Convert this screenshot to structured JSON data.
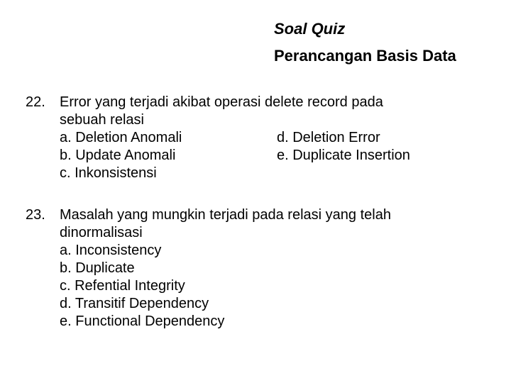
{
  "header": {
    "title": "Soal Quiz",
    "subtitle": "Perancangan Basis Data"
  },
  "questions": [
    {
      "number": "22.",
      "text_line1": "Error yang terjadi akibat operasi delete record pada",
      "text_line2": "sebuah relasi",
      "layout": "two-col",
      "left": [
        "a. Deletion Anomali",
        "b. Update Anomali",
        "c. Inkonsistensi"
      ],
      "right": [
        "d. Deletion Error",
        "e. Duplicate Insertion"
      ]
    },
    {
      "number": "23.",
      "text_line1": "Masalah yang mungkin terjadi pada relasi yang telah",
      "text_line2": "dinormalisasi",
      "layout": "one-col",
      "options": [
        "a. Inconsistency",
        "b. Duplicate",
        "c. Refential Integrity",
        "d. Transitif Dependency",
        "e. Functional Dependency"
      ]
    }
  ]
}
